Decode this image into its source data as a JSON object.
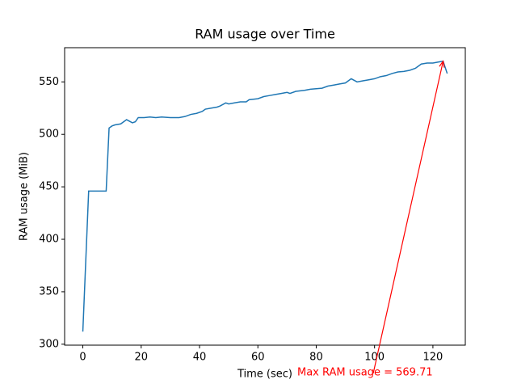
{
  "chart_data": {
    "type": "line",
    "title": "RAM usage over Time",
    "x_label": "Time (sec)",
    "y_label": "RAM usage (MiB)",
    "x": [
      0,
      2,
      3,
      5,
      8,
      9,
      10,
      11,
      13,
      15,
      17,
      18,
      19,
      21,
      23,
      25,
      27,
      30,
      33,
      35,
      37,
      39,
      41,
      42,
      44,
      46,
      47,
      49,
      50,
      52,
      54,
      56,
      57,
      60,
      62,
      64,
      66,
      68,
      70,
      71,
      73,
      76,
      78,
      80,
      82,
      84,
      86,
      88,
      90,
      92,
      94,
      96,
      98,
      100,
      102,
      104,
      106,
      108,
      110,
      112,
      114,
      116,
      118,
      120,
      122,
      123.5,
      124.9
    ],
    "values": [
      312,
      446,
      446,
      446,
      446,
      506,
      508,
      509,
      510,
      514,
      511,
      512,
      516,
      516,
      516.5,
      516,
      516.5,
      516,
      516,
      517,
      519,
      520,
      522,
      524,
      525,
      526,
      527,
      530,
      529,
      530,
      531,
      531,
      533,
      534,
      536,
      537,
      538,
      539,
      540,
      539,
      541,
      542,
      543,
      543.5,
      544,
      546,
      547,
      548,
      549,
      553,
      550,
      551,
      552,
      553,
      555,
      556,
      558,
      559.5,
      560,
      561,
      563,
      567,
      568,
      568,
      569,
      569.71,
      558
    ],
    "color": "#1f77b4",
    "xlim": [
      -6.24,
      131.1
    ],
    "ylim": [
      299.1,
      582.6
    ],
    "xticks": [
      0,
      20,
      40,
      60,
      80,
      100,
      120
    ],
    "yticks": [
      300,
      350,
      400,
      450,
      500,
      550
    ],
    "annotation": {
      "text": "Max RAM usage = 569.71",
      "color": "#ff0000"
    }
  }
}
